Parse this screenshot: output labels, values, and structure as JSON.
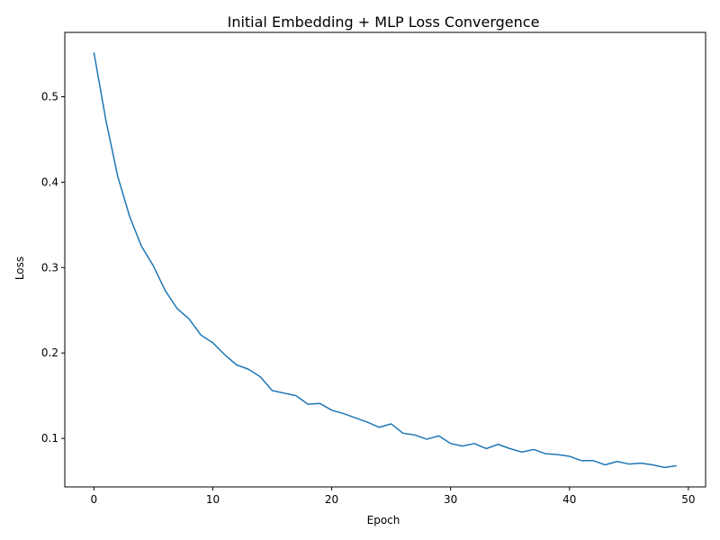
{
  "chart_data": {
    "type": "line",
    "title": "Initial Embedding + MLP Loss Convergence",
    "xlabel": "Epoch",
    "ylabel": "Loss",
    "xlim": [
      -2.45,
      51.45
    ],
    "ylim": [
      0.0432,
      0.5754
    ],
    "xticks": [
      0,
      10,
      20,
      30,
      40,
      50
    ],
    "xtick_labels": [
      "0",
      "10",
      "20",
      "30",
      "40",
      "50"
    ],
    "yticks": [
      0.1,
      0.2,
      0.3,
      0.4,
      0.5
    ],
    "ytick_labels": [
      "0.1",
      "0.2",
      "0.3",
      "0.4",
      "0.5"
    ],
    "grid": false,
    "line_color": "#1f77b4",
    "series": [
      {
        "x": [
          0,
          1,
          2,
          3,
          4,
          5,
          6,
          7,
          8,
          9,
          10,
          11,
          12,
          13,
          14,
          15,
          16,
          17,
          18,
          19,
          20,
          21,
          22,
          23,
          24,
          25,
          26,
          27,
          28,
          29,
          30,
          31,
          32,
          33,
          34,
          35,
          36,
          37,
          38,
          39,
          40,
          41,
          42,
          43,
          44,
          45,
          46,
          47,
          48,
          49
        ],
        "values": [
          0.552,
          0.473,
          0.407,
          0.36,
          0.325,
          0.302,
          0.273,
          0.252,
          0.24,
          0.221,
          0.212,
          0.198,
          0.186,
          0.181,
          0.172,
          0.156,
          0.153,
          0.15,
          0.14,
          0.141,
          0.133,
          0.129,
          0.124,
          0.119,
          0.113,
          0.117,
          0.106,
          0.104,
          0.099,
          0.103,
          0.094,
          0.091,
          0.094,
          0.088,
          0.093,
          0.088,
          0.084,
          0.087,
          0.082,
          0.081,
          0.079,
          0.074,
          0.074,
          0.069,
          0.073,
          0.07,
          0.071,
          0.069,
          0.066,
          0.068
        ]
      }
    ]
  }
}
